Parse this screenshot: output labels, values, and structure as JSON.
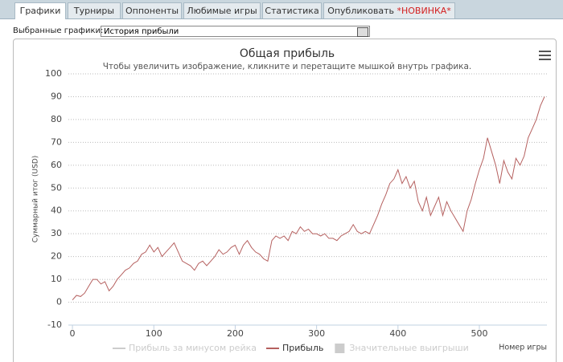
{
  "tabs": [
    {
      "label": "Графики"
    },
    {
      "label": "Турниры"
    },
    {
      "label": "Оппоненты"
    },
    {
      "label": "Любимые игры"
    },
    {
      "label": "Статистика"
    },
    {
      "label": "Опубликовать",
      "badge": "*НОВИНКА*"
    }
  ],
  "selector": {
    "label": "Выбранные графики:",
    "value": "История прибыли"
  },
  "chart_data": {
    "type": "line",
    "title": "Общая прибыль",
    "subtitle": "Чтобы увеличить изображение, кликните и перетащите мышкой внутрь графика.",
    "x_label": "Номер игры",
    "y_label": "Суммарный итог (USD)",
    "xlim": [
      -5,
      583
    ],
    "xticks": [
      0,
      100,
      200,
      300,
      400,
      500
    ],
    "ylim": [
      -10,
      100
    ],
    "yticks": [
      -10,
      0,
      10,
      20,
      30,
      40,
      50,
      60,
      70,
      80,
      90,
      100
    ],
    "grid": true,
    "legend_hidden": [
      {
        "name": "Прибыль за минусом рейка",
        "color": "#cccccc",
        "symbol": "line"
      },
      {
        "name": "Значительные выигрыши",
        "color": "#cccccc",
        "symbol": "box"
      }
    ],
    "legend_order": [
      "hidden0",
      "series",
      "hidden1"
    ],
    "x": [
      0,
      5,
      10,
      15,
      20,
      25,
      30,
      35,
      40,
      45,
      50,
      55,
      60,
      65,
      70,
      75,
      80,
      85,
      90,
      95,
      100,
      105,
      110,
      115,
      120,
      125,
      130,
      135,
      140,
      145,
      150,
      155,
      160,
      165,
      170,
      175,
      180,
      185,
      190,
      195,
      200,
      205,
      210,
      215,
      220,
      225,
      230,
      235,
      240,
      245,
      250,
      255,
      260,
      265,
      270,
      275,
      280,
      285,
      290,
      295,
      300,
      305,
      310,
      315,
      320,
      325,
      330,
      335,
      340,
      345,
      350,
      355,
      360,
      365,
      370,
      375,
      380,
      385,
      390,
      395,
      400,
      405,
      410,
      415,
      420,
      425,
      430,
      435,
      440,
      445,
      450,
      455,
      460,
      465,
      470,
      475,
      480,
      485,
      490,
      495,
      500,
      505,
      510,
      515,
      520,
      525,
      530,
      535,
      540,
      545,
      550,
      555,
      560,
      565,
      570,
      575,
      580
    ],
    "series": [
      {
        "name": "Прибыль",
        "color": "#b5605f",
        "values": [
          1,
          3,
          2.5,
          4,
          7,
          10,
          10,
          8,
          9,
          5,
          7,
          10,
          12,
          14,
          15,
          17,
          18,
          21,
          22,
          25,
          22,
          24,
          20,
          22,
          24,
          26,
          22,
          18,
          17,
          16,
          14,
          17,
          18,
          16,
          18,
          20,
          23,
          21,
          22,
          24,
          25,
          21,
          25,
          27,
          24,
          22,
          21,
          19,
          18,
          27,
          29,
          28,
          29,
          27,
          31,
          30,
          33,
          31,
          32,
          30,
          30,
          29,
          30,
          28,
          28,
          27,
          29,
          30,
          31,
          34,
          31,
          30,
          31,
          30,
          34,
          38,
          43,
          47,
          52,
          54,
          58,
          52,
          55,
          50,
          53,
          44,
          40,
          46,
          38,
          42,
          46,
          38,
          44,
          40,
          37,
          34,
          31,
          40,
          45,
          52,
          58,
          63,
          72,
          66,
          60,
          52,
          62,
          57,
          54,
          63,
          60,
          64,
          72,
          76,
          80,
          86,
          90
        ]
      }
    ]
  }
}
